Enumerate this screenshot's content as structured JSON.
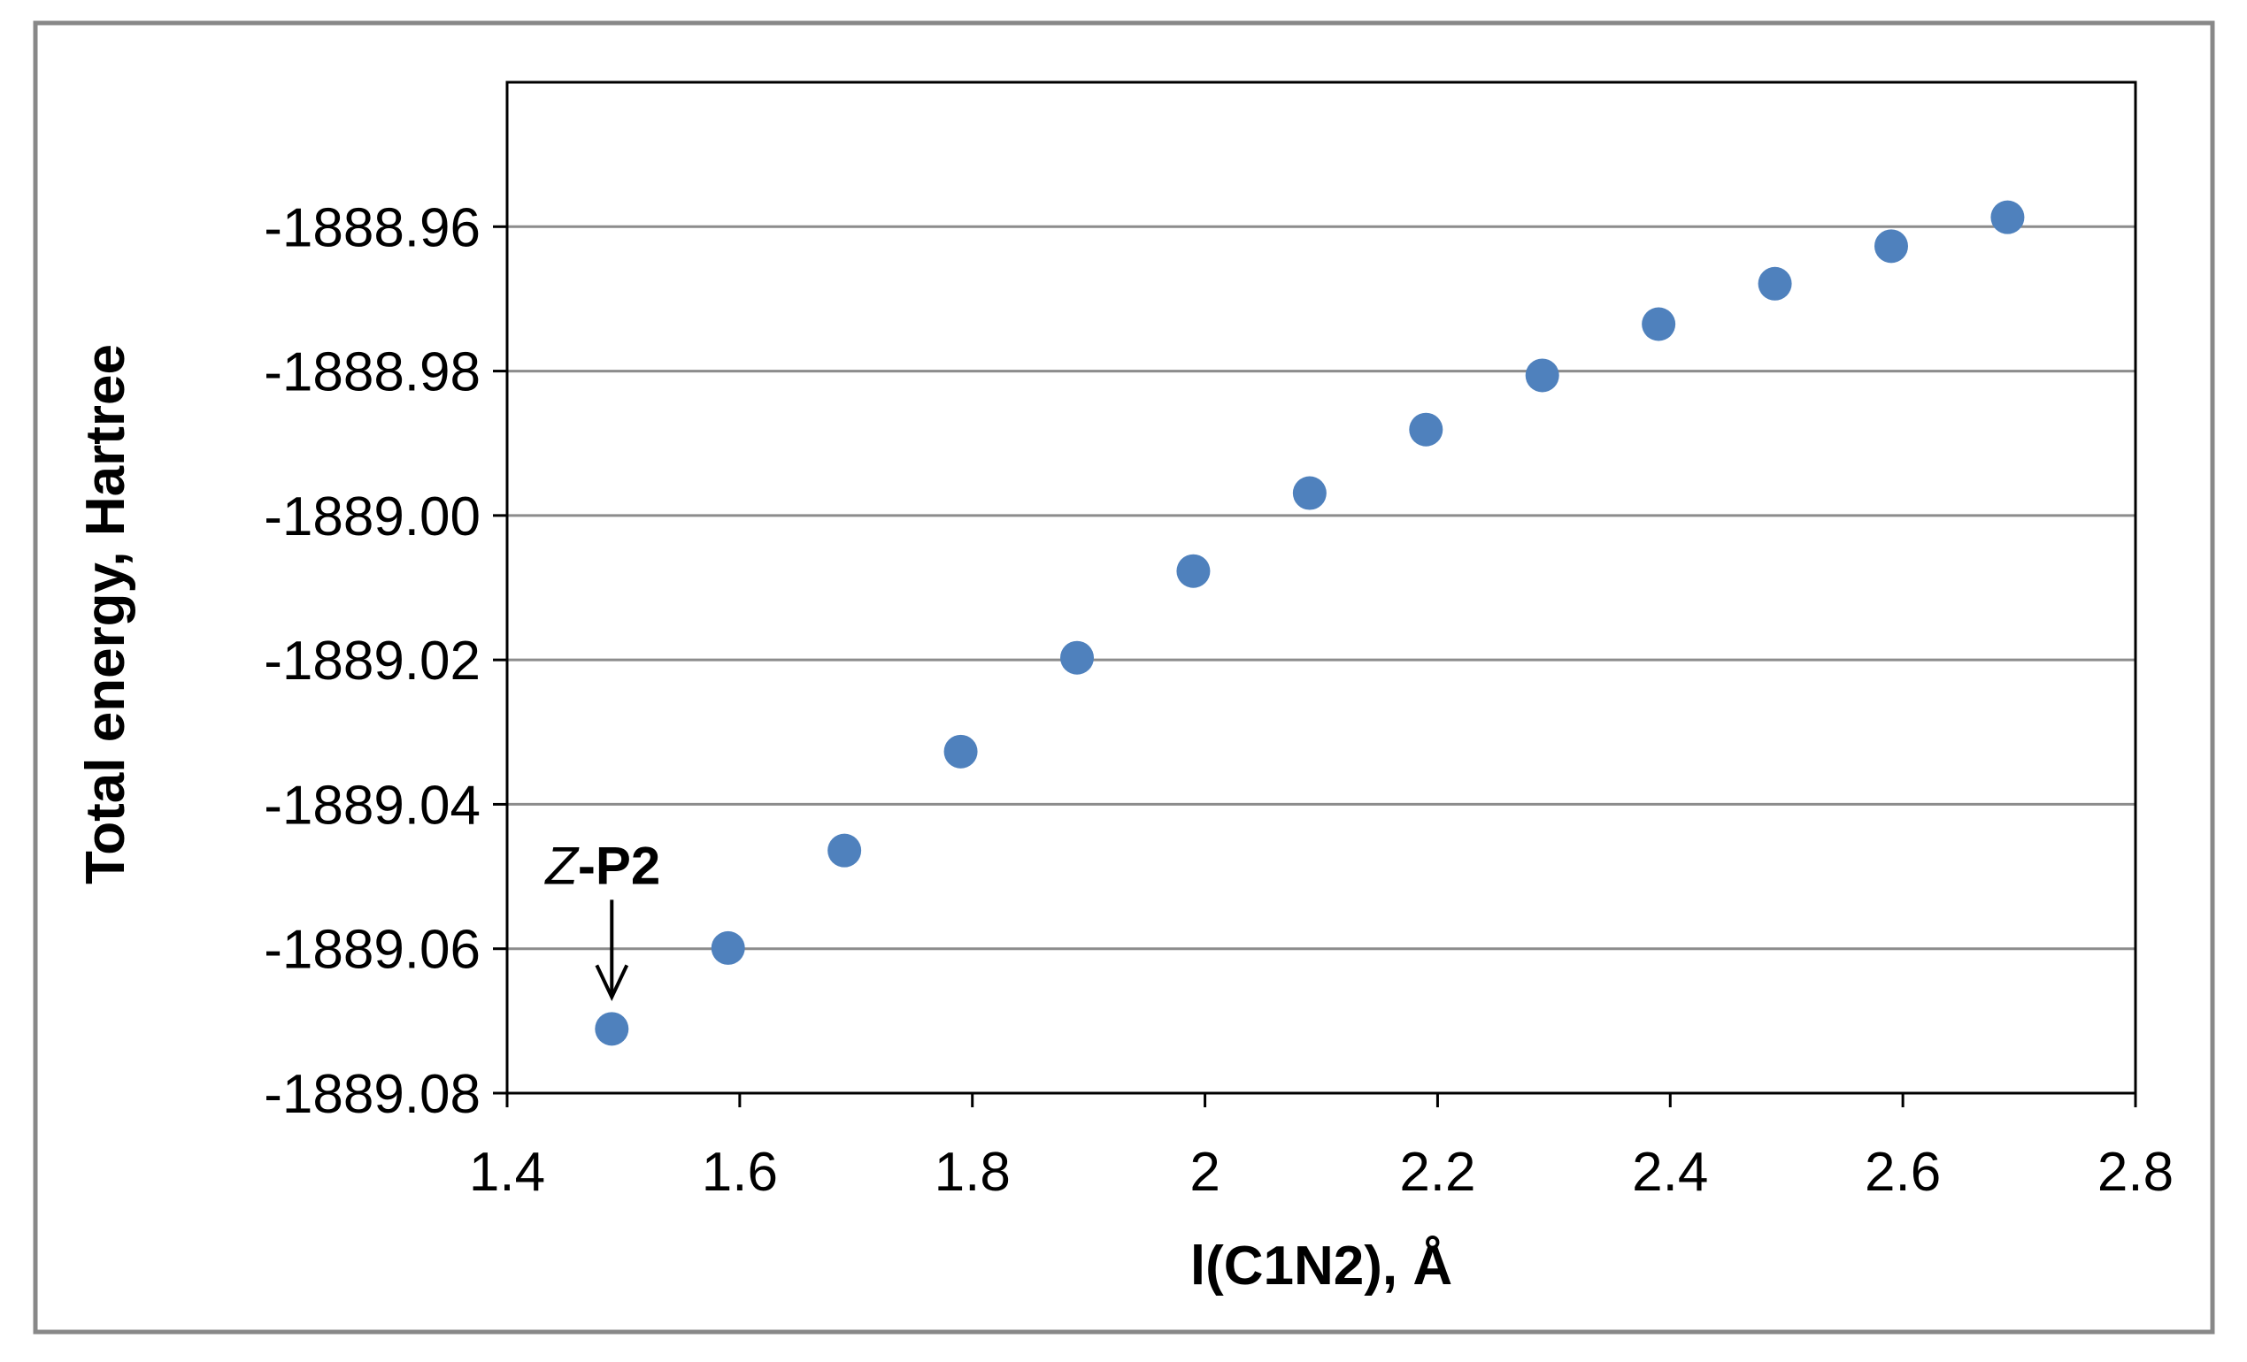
{
  "chart_data": {
    "type": "scatter",
    "title": "",
    "xlabel": "l(C1N2), Å",
    "ylabel": "Total energy, Hartree",
    "xlim": [
      1.4,
      2.8
    ],
    "ylim": [
      -1889.08,
      -1888.94
    ],
    "xticks": [
      1.4,
      1.6,
      1.8,
      2.0,
      2.2,
      2.4,
      2.6,
      2.8
    ],
    "xtick_labels": [
      "1.4",
      "1.6",
      "1.8",
      "2",
      "2.2",
      "2.4",
      "2.6",
      "2.8"
    ],
    "yticks": [
      -1889.08,
      -1889.06,
      -1889.04,
      -1889.02,
      -1889.0,
      -1888.98,
      -1888.96
    ],
    "ytick_labels": [
      "-1889.08",
      "-1889.06",
      "-1889.04",
      "-1889.02",
      "-1889.00",
      "-1888.98",
      "-1888.96"
    ],
    "grid": "horizontal",
    "legend": "none",
    "marker_color": "#4f81bd",
    "series": [
      {
        "x": [
          1.49,
          1.59,
          1.69,
          1.79,
          1.89,
          1.99,
          2.09,
          2.19,
          2.29,
          2.39,
          2.49,
          2.59,
          2.69
        ],
        "y": [
          -1889.0711,
          -1889.0599,
          -1889.0464,
          -1889.0327,
          -1889.0197,
          -1889.0077,
          -1888.9969,
          -1888.9881,
          -1888.9806,
          -1888.9735,
          -1888.9679,
          -1888.9627,
          -1888.9587
        ]
      }
    ],
    "annotations": [
      {
        "text_italic": "Z",
        "text_rest": "-P2",
        "target_x": 1.49,
        "target_y": -1889.0711,
        "arrow": "down"
      }
    ]
  }
}
